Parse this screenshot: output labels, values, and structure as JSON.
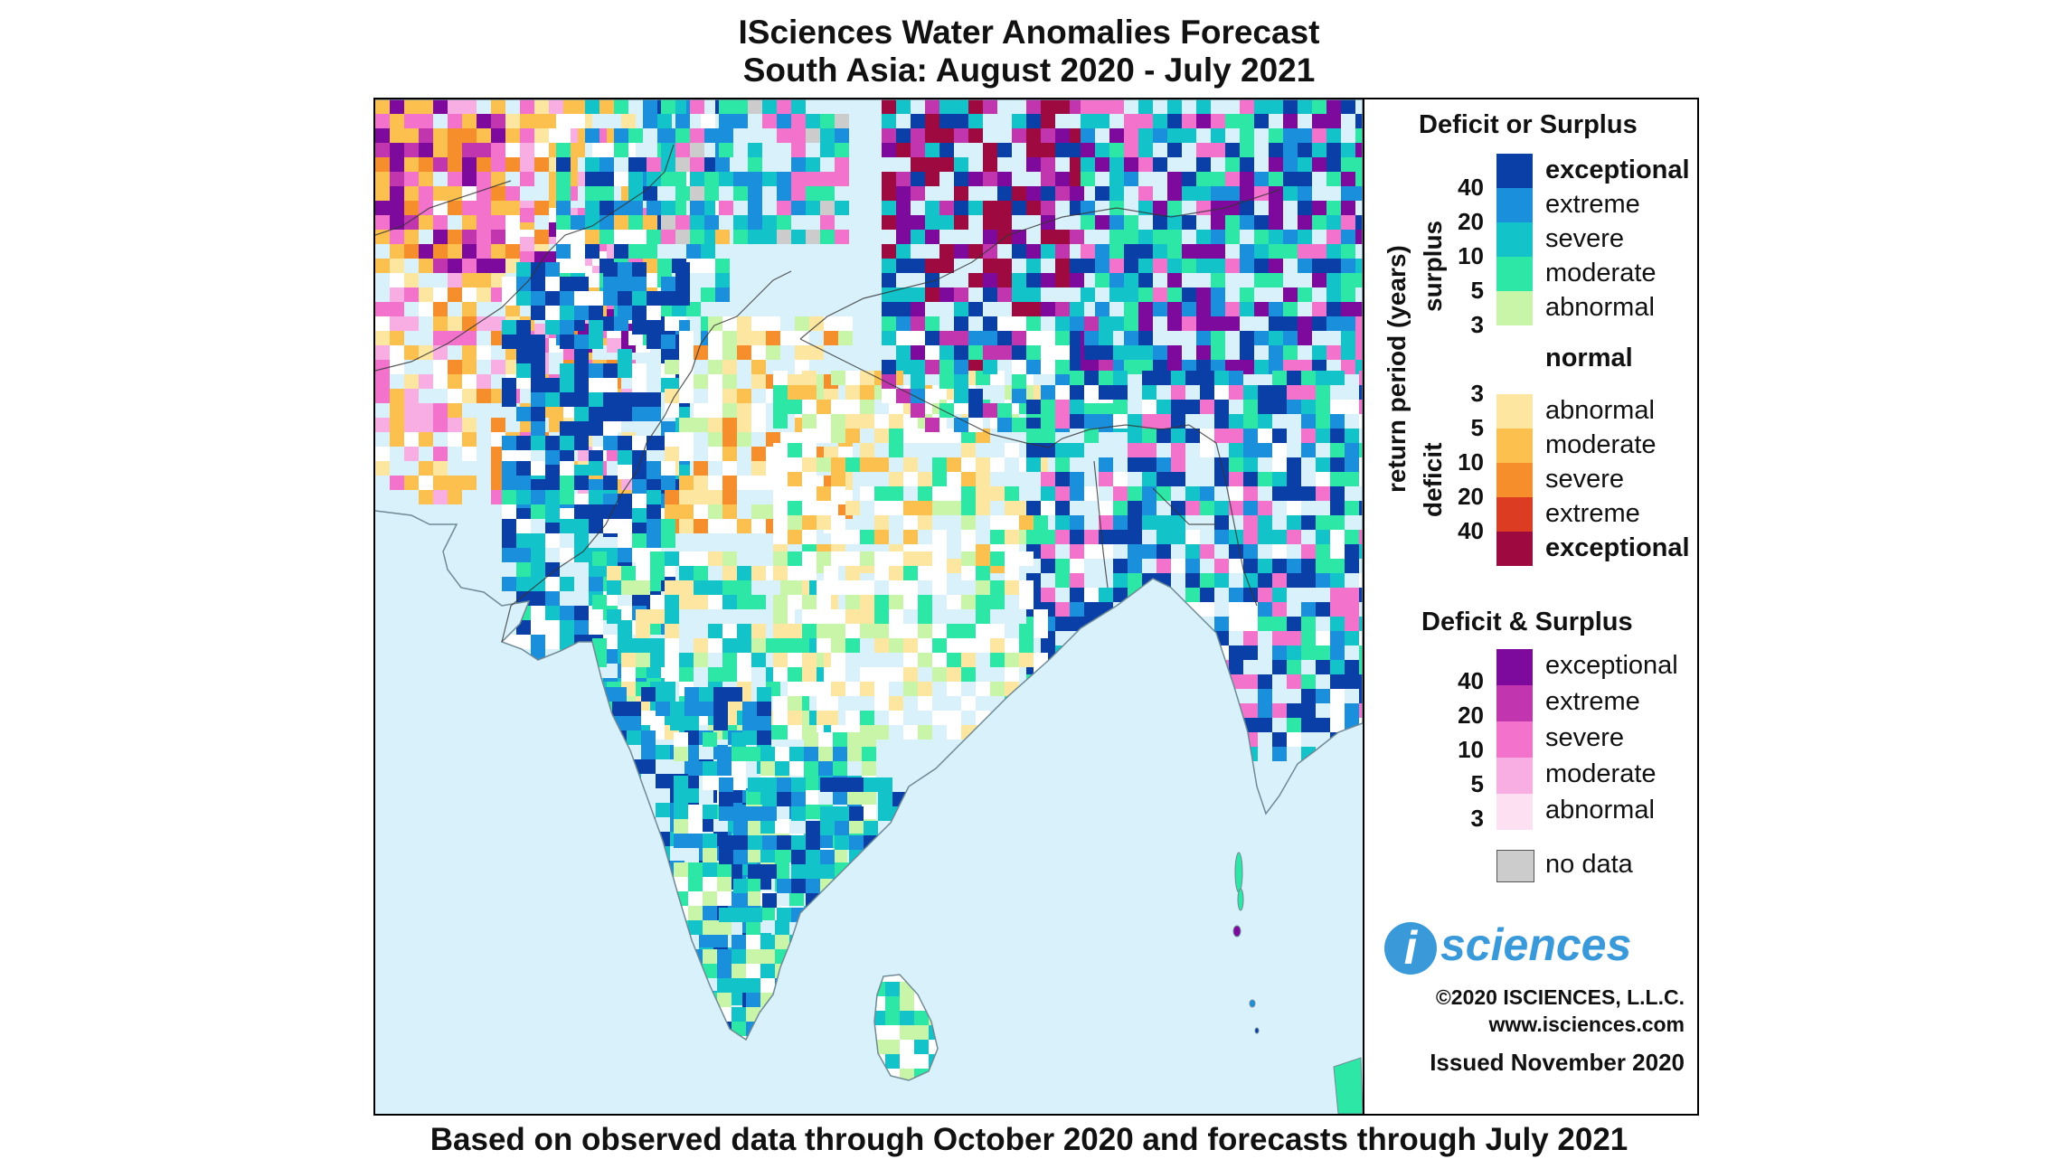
{
  "title_line1": "ISciences Water Anomalies Forecast",
  "title_line2": "South Asia: August 2020 - July 2021",
  "footer": "Based on observed data through October 2020 and forecasts through July 2021",
  "legend": {
    "heading1": "Deficit or Surplus",
    "axis_label": "return period (years)",
    "surplus_label": "surplus",
    "deficit_label": "deficit",
    "surplus": [
      {
        "label": "exceptional",
        "color": "#0a3fa8",
        "bold": true
      },
      {
        "label": "extreme",
        "color": "#1a8fdc"
      },
      {
        "label": "severe",
        "color": "#12c3c9"
      },
      {
        "label": "moderate",
        "color": "#2de7a6"
      },
      {
        "label": "abnormal",
        "color": "#c9f5a9"
      }
    ],
    "surplus_numbers": [
      "40",
      "20",
      "10",
      "5",
      "3"
    ],
    "normal_label": "normal",
    "deficit": [
      {
        "label": "abnormal",
        "color": "#fde6a0"
      },
      {
        "label": "moderate",
        "color": "#fbc04e"
      },
      {
        "label": "severe",
        "color": "#f68f2b"
      },
      {
        "label": "extreme",
        "color": "#dc3d22"
      },
      {
        "label": "exceptional",
        "color": "#9e0a3f",
        "bold": true
      }
    ],
    "deficit_numbers": [
      "3",
      "5",
      "10",
      "20",
      "40"
    ],
    "heading2": "Deficit & Surplus",
    "both": [
      {
        "label": "exceptional",
        "color": "#7d0a9c"
      },
      {
        "label": "extreme",
        "color": "#c136ae"
      },
      {
        "label": "severe",
        "color": "#f373cc"
      },
      {
        "label": "moderate",
        "color": "#f9aee3"
      },
      {
        "label": "abnormal",
        "color": "#fde0f1"
      }
    ],
    "both_numbers": [
      "40",
      "20",
      "10",
      "5",
      "3"
    ],
    "nodata_label": "no data",
    "nodata_color": "#cccccc"
  },
  "logo": {
    "letter": "i",
    "text": "sciences"
  },
  "copyright": "©2020 ISCIENCES, L.L.C.",
  "website": "www.isciences.com",
  "issued": "Issued November 2020",
  "colors": {
    "ocean": "#d9f1fb",
    "coast": "#6e8a96",
    "border": "#333333"
  }
}
